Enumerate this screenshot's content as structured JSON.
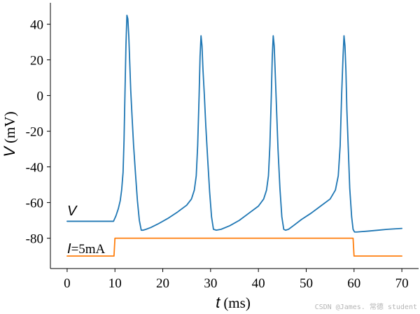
{
  "chart_data": {
    "type": "line",
    "xlabel_var": "t",
    "xlabel_unit": "(ms)",
    "ylabel_var": "V",
    "ylabel_unit": "(mV)",
    "xlim": [
      -3.5,
      73.5
    ],
    "ylim": [
      -97,
      52
    ],
    "x_ticks": [
      0,
      10,
      20,
      30,
      40,
      50,
      60,
      70
    ],
    "y_ticks": [
      40,
      20,
      0,
      -20,
      -40,
      -60,
      -80
    ],
    "y_tick_labels": [
      "40",
      "20",
      "0",
      "-20",
      "-40",
      "-60",
      "-80"
    ],
    "grid": false,
    "series": [
      {
        "name": "V",
        "color": "#1f77b4",
        "x": [
          0,
          9.7,
          10.2,
          10.7,
          11.1,
          11.4,
          11.7,
          11.9,
          12.1,
          12.3,
          12.5,
          12.7,
          12.9,
          13.1,
          13.3,
          13.6,
          13.9,
          14.3,
          14.7,
          15.1,
          15.5,
          15.9,
          16.5,
          17.5,
          19,
          21,
          23,
          25,
          26,
          26.6,
          27,
          27.3,
          27.6,
          27.8,
          28,
          28.2,
          28.4,
          28.7,
          29,
          29.4,
          29.8,
          30.2,
          30.6,
          31.2,
          32.2,
          34,
          36,
          38,
          40,
          41.1,
          41.7,
          42.1,
          42.4,
          42.7,
          42.9,
          43.1,
          43.3,
          43.5,
          43.8,
          44.1,
          44.5,
          44.9,
          45.3,
          45.7,
          46.3,
          47.3,
          49,
          51,
          53,
          55,
          56.1,
          56.7,
          57.1,
          57.4,
          57.7,
          57.9,
          58.1,
          58.3,
          58.5,
          58.8,
          59.1,
          59.5,
          59.8,
          60.1,
          60.6,
          61.5,
          63,
          65,
          67,
          70
        ],
        "values": [
          -70.5,
          -70.5,
          -67.5,
          -63.5,
          -59,
          -53,
          -43,
          -25,
          2,
          28,
          45,
          43,
          33,
          18,
          3,
          -13,
          -28,
          -44,
          -59,
          -70,
          -75.5,
          -75.5,
          -75,
          -74,
          -72,
          -69,
          -65.5,
          -61.5,
          -58,
          -53,
          -45,
          -28,
          0,
          22,
          33.5,
          28,
          15,
          0,
          -17,
          -36,
          -54,
          -68,
          -75,
          -75.5,
          -75,
          -73,
          -70,
          -66,
          -62,
          -58,
          -53,
          -45,
          -28,
          0,
          22,
          33.5,
          28,
          14,
          -8,
          -30,
          -52,
          -68,
          -75,
          -75.5,
          -75,
          -73,
          -69.5,
          -66,
          -62,
          -58,
          -53,
          -45,
          -28,
          0,
          22,
          33.5,
          28,
          14,
          -8,
          -30,
          -52,
          -68,
          -75,
          -76.5,
          -76.5,
          -76.3,
          -76,
          -75.5,
          -75,
          -74.5
        ]
      },
      {
        "name": "I",
        "color": "#ff7f0e",
        "x": [
          0,
          9.8,
          10,
          59.8,
          60,
          70
        ],
        "values": [
          -90,
          -90,
          -80,
          -80,
          -90,
          -90
        ]
      }
    ],
    "annotations": [
      {
        "var": "V",
        "text": ""
      },
      {
        "var": "I",
        "text": "=5mA"
      }
    ]
  },
  "watermark": "CSDN @James. 常德 student"
}
